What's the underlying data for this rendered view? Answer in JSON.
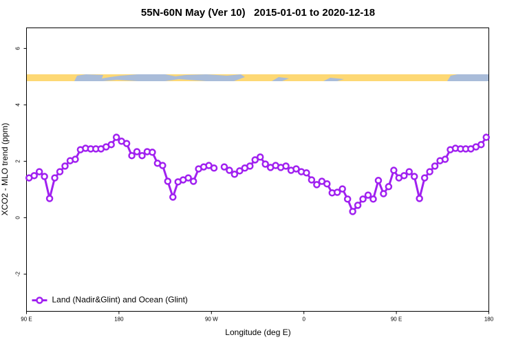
{
  "chart_data": {
    "type": "line",
    "title": "55N-60N May (Ver 10)   2015-01-01 to 2020-12-18",
    "x_label": "Longitude (deg E)",
    "y_label": "XCO2 - MLO trend (ppm)",
    "xlim": [
      90,
      540
    ],
    "xticks": [
      {
        "value": 90,
        "label": "90 E"
      },
      180,
      {
        "value": 270,
        "label": "90 W"
      },
      {
        "value": 360,
        "label": "0"
      },
      {
        "value": 450,
        "label": "90 E"
      },
      {
        "value": 540,
        "label": "180"
      }
    ],
    "ylim": [
      -3.32,
      6.73
    ],
    "yticks": [
      -2,
      0,
      2,
      4,
      6
    ],
    "legend": "bottom-left",
    "series": [
      {
        "name": "Land (Nadir&Glint) and Ocean (Glint)",
        "color": "#a020f0",
        "x": [
          92.5,
          97.5,
          102.5,
          107.5,
          112.5,
          117.5,
          122.5,
          127.5,
          132.5,
          137.5,
          142.5,
          147.5,
          152.5,
          157.5,
          162.5,
          167.5,
          172.5,
          177.5,
          182.5,
          187.5,
          192.5,
          197.5,
          202.5,
          207.5,
          212.5,
          217.5,
          222.5,
          227.5,
          232.5,
          237.5,
          242.5,
          247.5,
          252.5,
          257.5,
          262.5,
          267.5,
          272.5,
          277.5,
          282.5,
          287.5,
          292.5,
          297.5,
          302.5,
          307.5,
          312.5,
          317.5,
          322.5,
          327.5,
          332.5,
          337.5,
          342.5,
          347.5,
          352.5,
          357.5,
          362.5,
          367.5,
          372.5,
          377.5,
          382.5,
          387.5,
          392.5,
          397.5,
          402.5,
          407.5,
          412.5,
          417.5,
          422.5,
          427.5,
          432.5,
          437.5,
          442.5,
          447.5,
          452.5,
          457.5,
          462.5,
          467.5,
          472.5,
          477.5,
          482.5,
          487.5,
          492.5,
          497.5,
          502.5,
          507.5,
          512.5,
          517.5,
          522.5,
          527.5,
          532.5,
          537.5
        ],
        "values": [
          1.41,
          1.49,
          1.63,
          1.46,
          0.68,
          1.41,
          1.63,
          1.83,
          2.02,
          2.07,
          2.41,
          2.46,
          2.44,
          2.44,
          2.44,
          2.51,
          2.59,
          2.85,
          2.71,
          2.63,
          2.2,
          2.34,
          2.2,
          2.34,
          2.32,
          1.93,
          1.85,
          1.29,
          0.73,
          1.27,
          1.34,
          1.41,
          1.29,
          1.73,
          1.8,
          1.85,
          1.76,
          null,
          1.8,
          1.68,
          1.54,
          1.66,
          1.76,
          1.83,
          2.05,
          2.15,
          1.9,
          1.78,
          1.85,
          1.78,
          1.83,
          1.68,
          1.73,
          1.63,
          1.59,
          1.34,
          1.17,
          1.29,
          1.2,
          0.88,
          0.9,
          1.02,
          0.66,
          0.22,
          0.44,
          0.66,
          0.8,
          0.66,
          1.32,
          0.85,
          1.1,
          1.68,
          1.41,
          1.49,
          1.63,
          1.46,
          0.68,
          1.41,
          1.63,
          1.83,
          2.02,
          2.07,
          2.41,
          2.46,
          2.44,
          2.44,
          2.44,
          2.51,
          2.59,
          2.85
        ]
      }
    ]
  }
}
